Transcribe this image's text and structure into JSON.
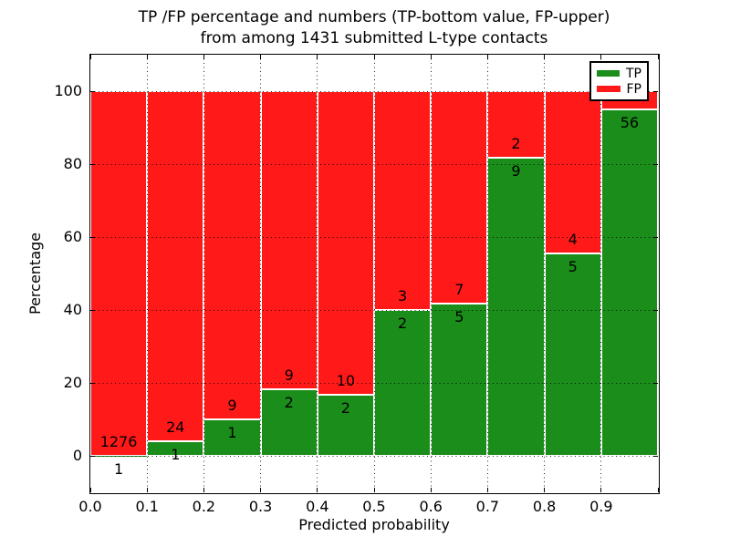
{
  "chart_data": {
    "type": "bar",
    "stacked": true,
    "normalized": "percent",
    "title": "TP /FP percentage and numbers (TP-bottom value, FP-upper) from among 1431 submitted L-type contacts",
    "title_lines": [
      "TP /FP percentage and numbers (TP-bottom value, FP-upper)",
      "from among 1431 submitted L-type contacts"
    ],
    "total_submitted": 1431,
    "xlabel": "Predicted probability",
    "ylabel": "Percentage",
    "xlim": [
      0.0,
      1.0
    ],
    "ylim": [
      -10,
      110
    ],
    "bin_width": 0.1,
    "grid": true,
    "x_tick_labels": [
      "0.0",
      "0.1",
      "0.2",
      "0.3",
      "0.4",
      "0.5",
      "0.6",
      "0.7",
      "0.8",
      "0.9"
    ],
    "y_tick_labels": [
      "0",
      "20",
      "40",
      "60",
      "80",
      "100"
    ],
    "y_tick_values": [
      0,
      20,
      40,
      60,
      80,
      100
    ],
    "tp_color": "#1A8D1A",
    "fp_color": "#FF1919",
    "grid_color": "#000000",
    "legend": {
      "position": "upper right",
      "entries": [
        {
          "label": "TP",
          "color": "#1A8D1A"
        },
        {
          "label": "FP",
          "color": "#FF1919"
        }
      ]
    },
    "bins": [
      {
        "x0": 0.0,
        "tp": 1,
        "fp": 1276
      },
      {
        "x0": 0.1,
        "tp": 1,
        "fp": 24
      },
      {
        "x0": 0.2,
        "tp": 1,
        "fp": 9
      },
      {
        "x0": 0.3,
        "tp": 2,
        "fp": 9
      },
      {
        "x0": 0.4,
        "tp": 2,
        "fp": 10
      },
      {
        "x0": 0.5,
        "tp": 2,
        "fp": 3
      },
      {
        "x0": 0.6,
        "tp": 5,
        "fp": 7
      },
      {
        "x0": 0.7,
        "tp": 9,
        "fp": 2
      },
      {
        "x0": 0.8,
        "tp": 5,
        "fp": 4
      },
      {
        "x0": 0.9,
        "tp": 56,
        "fp": 3,
        "fp_label_hidden": true
      }
    ]
  }
}
